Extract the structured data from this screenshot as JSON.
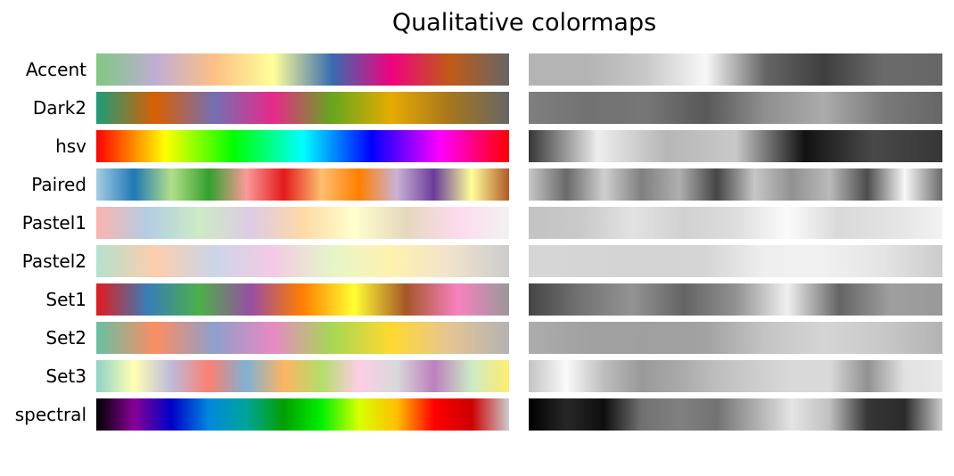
{
  "chart_data": {
    "type": "heatmap",
    "title": "Qualitative colormaps",
    "columns": [
      "color",
      "grayscale luminance"
    ],
    "colormaps": [
      {
        "name": "Accent",
        "colors": [
          "#7fc97f",
          "#beaed4",
          "#fdc086",
          "#ffff99",
          "#386cb0",
          "#f0027f",
          "#bf5b17",
          "#666666"
        ]
      },
      {
        "name": "Dark2",
        "colors": [
          "#1b9e77",
          "#d95f02",
          "#7570b3",
          "#e7298a",
          "#66a61e",
          "#e6ab02",
          "#a6761d",
          "#666666"
        ]
      },
      {
        "name": "hsv",
        "colors": [
          "#ff0000",
          "#ffff00",
          "#00ff00",
          "#00ffff",
          "#0000ff",
          "#ff00ff",
          "#ff0000"
        ]
      },
      {
        "name": "Paired",
        "colors": [
          "#a6cee3",
          "#1f78b4",
          "#b2df8a",
          "#33a02c",
          "#fb9a99",
          "#e31a1c",
          "#fdbf6f",
          "#ff7f00",
          "#cab2d6",
          "#6a3d9a",
          "#ffff99",
          "#b15928"
        ]
      },
      {
        "name": "Pastel1",
        "colors": [
          "#fbb4ae",
          "#b3cde3",
          "#ccebc5",
          "#decbe4",
          "#fed9a6",
          "#ffffcc",
          "#e5d8bd",
          "#fddaec",
          "#f2f2f2"
        ]
      },
      {
        "name": "Pastel2",
        "colors": [
          "#b3e2cd",
          "#fdcdac",
          "#cbd5e8",
          "#f4cae4",
          "#e6f5c9",
          "#fff2ae",
          "#f1e2cc",
          "#cccccc"
        ]
      },
      {
        "name": "Set1",
        "colors": [
          "#e41a1c",
          "#377eb8",
          "#4daf4a",
          "#984ea3",
          "#ff7f00",
          "#ffff33",
          "#a65628",
          "#f781bf",
          "#999999"
        ]
      },
      {
        "name": "Set2",
        "colors": [
          "#66c2a5",
          "#fc8d62",
          "#8da0cb",
          "#e78ac3",
          "#a6d854",
          "#ffd92f",
          "#e5c494",
          "#b3b3b3"
        ]
      },
      {
        "name": "Set3",
        "colors": [
          "#8dd3c7",
          "#ffffb3",
          "#bebada",
          "#fb8072",
          "#80b1d3",
          "#fdb462",
          "#b3de69",
          "#fccde5",
          "#d9d9d9",
          "#bc80bd",
          "#ccebc5",
          "#ffed6f"
        ]
      },
      {
        "name": "spectral",
        "colors": [
          "#000000",
          "#870095",
          "#0000c8",
          "#0088dd",
          "#00a499",
          "#00a000",
          "#00f000",
          "#d8ff00",
          "#ffc000",
          "#ff0000",
          "#cc0000",
          "#cccccc"
        ]
      }
    ]
  }
}
